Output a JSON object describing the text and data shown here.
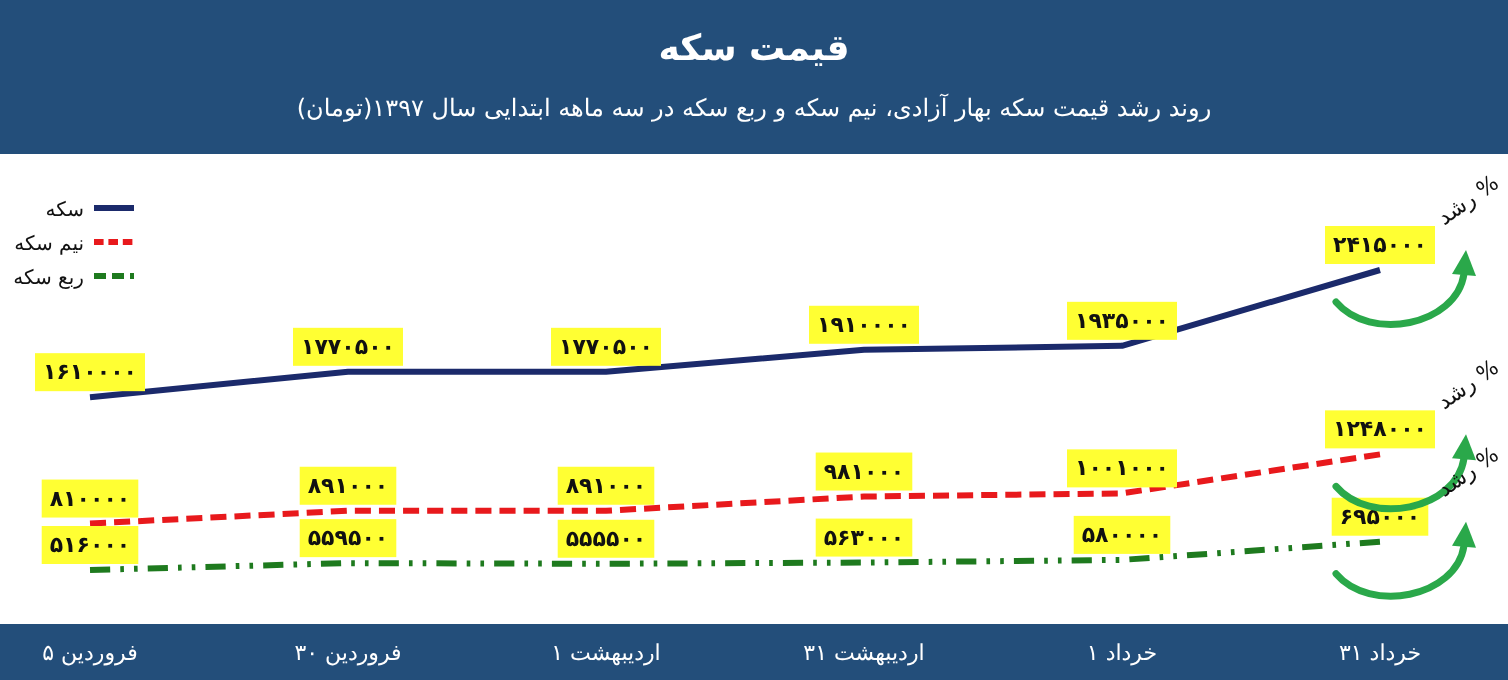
{
  "chart_data": {
    "type": "line",
    "title": "قیمت سکه",
    "subtitle": "روند رشد قیمت سکه بهار آزادی، نیم سکه و ربع سکه در سه ماهه ابتدایی سال ۱۳۹۷(تومان)",
    "categories": [
      "۵ فروردین",
      "۳۰ فروردین",
      "۱ اردیبهشت",
      "۳۱ اردیبهشت",
      "۱ خرداد",
      "۳۱ خرداد"
    ],
    "series": [
      {
        "name": "سکه",
        "color": "#1b2a6b",
        "line_style": "solid",
        "values": [
          1610000,
          1770500,
          1770500,
          1910000,
          1935000,
          2415000
        ],
        "value_labels": [
          "۱۶۱۰۰۰۰",
          "۱۷۷۰۵۰۰",
          "۱۷۷۰۵۰۰",
          "۱۹۱۰۰۰۰",
          "۱۹۳۵۰۰۰",
          "۲۴۱۵۰۰۰"
        ]
      },
      {
        "name": "نیم سکه",
        "color": "#e8191c",
        "line_style": "dashed",
        "values": [
          810000,
          891000,
          891000,
          981000,
          1001000,
          1248000
        ],
        "value_labels": [
          "۸۱۰۰۰۰",
          "۸۹۱۰۰۰",
          "۸۹۱۰۰۰",
          "۹۸۱۰۰۰",
          "۱۰۰۱۰۰۰",
          "۱۲۴۸۰۰۰"
        ]
      },
      {
        "name": "ربع سکه",
        "color": "#1e7a1e",
        "line_style": "dotted",
        "values": [
          516000,
          559500,
          555500,
          563000,
          580000,
          695000
        ],
        "value_labels": [
          "۵۱۶۰۰۰",
          "۵۵۹۵۰۰",
          "۵۵۵۵۰۰",
          "۵۶۳۰۰۰",
          "۵۸۰۰۰۰",
          "۶۹۵۰۰۰"
        ]
      }
    ],
    "legend": "top left",
    "tick_labels": "x",
    "marker": "none",
    "grid": false,
    "annotations": [
      "% رشد",
      "% رشد",
      "% رشد"
    ]
  }
}
